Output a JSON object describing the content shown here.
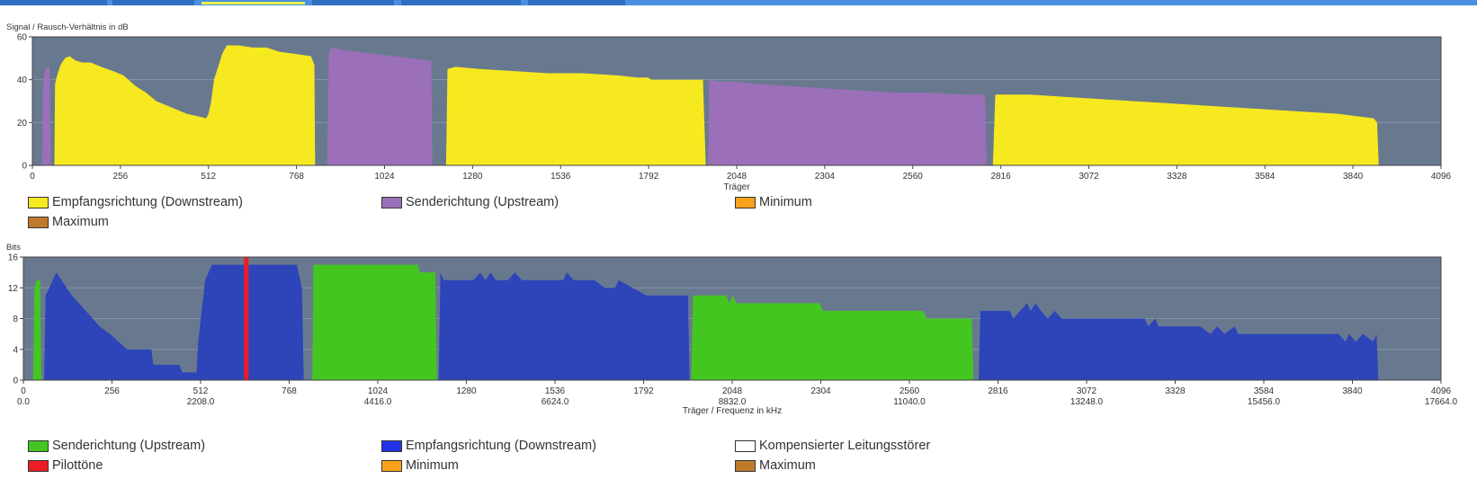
{
  "tabs": [
    {
      "label": "",
      "active": false
    },
    {
      "label": "",
      "active": false
    },
    {
      "label": "",
      "active": true
    },
    {
      "label": "",
      "active": false
    },
    {
      "label": "",
      "active": false
    },
    {
      "label": "",
      "active": false
    }
  ],
  "colors": {
    "plot_bg": "#68798f",
    "grid": "#8494a8",
    "downstream_snr": "#f7e91f",
    "upstream_snr": "#9b70b8",
    "upstream_bits": "#44c621",
    "downstream_bits": "#2d45b9",
    "pilot": "#ee1c24",
    "minimum": "#f8a11b",
    "maximum": "#c07a2c",
    "compensated": "#ffffff",
    "downstream_legend": "#2233e6"
  },
  "chart_data": [
    {
      "type": "area",
      "title": "Signal / Rausch-Verhältnis in dB",
      "xlabel": "Träger",
      "ylabel": "Signal / Rausch-Verhältnis in dB",
      "xlim": [
        0,
        4096
      ],
      "ylim": [
        0,
        60
      ],
      "xticks": [
        0,
        256,
        512,
        768,
        1024,
        1280,
        1536,
        1792,
        2048,
        2304,
        2560,
        2816,
        3072,
        3328,
        3584,
        3840,
        4096
      ],
      "yticks": [
        0,
        20,
        40,
        60
      ],
      "grid": true,
      "legend": [
        {
          "label": "Empfangsrichtung (Downstream)",
          "color": "#f7e91f"
        },
        {
          "label": "Senderichtung (Upstream)",
          "color": "#9b70b8"
        },
        {
          "label": "Minimum",
          "color": "#f8a11b"
        },
        {
          "label": "Maximum",
          "color": "#c07a2c"
        }
      ],
      "series": [
        {
          "name": "Senderichtung (Upstream)",
          "color": "#9b70b8",
          "points": [
            [
              28,
              0
            ],
            [
              32,
              40
            ],
            [
              38,
              45
            ],
            [
              44,
              46
            ],
            [
              50,
              46
            ],
            [
              54,
              0
            ]
          ]
        },
        {
          "name": "Empfangsrichtung (Downstream)",
          "color": "#f7e91f",
          "points": [
            [
              64,
              0
            ],
            [
              66,
              38
            ],
            [
              72,
              42
            ],
            [
              82,
              47
            ],
            [
              95,
              50
            ],
            [
              108,
              51
            ],
            [
              125,
              49
            ],
            [
              145,
              48
            ],
            [
              170,
              48
            ],
            [
              200,
              46
            ],
            [
              235,
              44
            ],
            [
              265,
              42
            ],
            [
              300,
              37
            ],
            [
              330,
              34
            ],
            [
              360,
              30
            ],
            [
              390,
              28
            ],
            [
              420,
              26
            ],
            [
              450,
              24
            ],
            [
              480,
              23
            ],
            [
              505,
              22
            ],
            [
              512,
              24
            ],
            [
              520,
              30
            ],
            [
              528,
              40
            ],
            [
              540,
              46
            ],
            [
              552,
              52
            ],
            [
              565,
              56
            ],
            [
              600,
              56
            ],
            [
              640,
              55
            ],
            [
              680,
              55
            ],
            [
              720,
              53
            ],
            [
              768,
              52
            ],
            [
              810,
              51
            ],
            [
              820,
              47
            ],
            [
              822,
              0
            ]
          ]
        },
        {
          "name": "Senderichtung (Upstream)",
          "color": "#9b70b8",
          "points": [
            [
              857,
              0
            ],
            [
              862,
              53
            ],
            [
              870,
              55
            ],
            [
              900,
              54
            ],
            [
              950,
              53
            ],
            [
              1000,
              52
            ],
            [
              1050,
              51
            ],
            [
              1100,
              50
            ],
            [
              1150,
              49
            ],
            [
              1160,
              49
            ],
            [
              1163,
              0
            ]
          ]
        },
        {
          "name": "Empfangsrichtung (Downstream)",
          "color": "#f7e91f",
          "points": [
            [
              1203,
              0
            ],
            [
              1207,
              45
            ],
            [
              1230,
              46
            ],
            [
              1300,
              45
            ],
            [
              1400,
              44
            ],
            [
              1500,
              43
            ],
            [
              1600,
              43
            ],
            [
              1700,
              42
            ],
            [
              1760,
              41
            ],
            [
              1790,
              41
            ],
            [
              1800,
              40
            ],
            [
              1950,
              40
            ],
            [
              1958,
              0
            ]
          ]
        },
        {
          "name": "Senderichtung (Upstream)",
          "color": "#9b70b8",
          "points": [
            [
              1965,
              0
            ],
            [
              1968,
              40
            ],
            [
              2000,
              39
            ],
            [
              2050,
              39
            ],
            [
              2100,
              38
            ],
            [
              2200,
              37
            ],
            [
              2300,
              36
            ],
            [
              2400,
              35
            ],
            [
              2500,
              34
            ],
            [
              2600,
              34
            ],
            [
              2700,
              33
            ],
            [
              2770,
              33
            ],
            [
              2775,
              0
            ]
          ]
        },
        {
          "name": "Empfangsrichtung (Downstream)",
          "color": "#f7e91f",
          "points": [
            [
              2793,
              0
            ],
            [
              2800,
              33
            ],
            [
              2900,
              33
            ],
            [
              3000,
              32
            ],
            [
              3100,
              31
            ],
            [
              3200,
              30
            ],
            [
              3300,
              29
            ],
            [
              3400,
              28
            ],
            [
              3500,
              27
            ],
            [
              3600,
              26
            ],
            [
              3700,
              25
            ],
            [
              3800,
              24
            ],
            [
              3850,
              23
            ],
            [
              3900,
              22
            ],
            [
              3910,
              20
            ],
            [
              3915,
              0
            ]
          ]
        }
      ]
    },
    {
      "type": "area",
      "title": "Bits",
      "xlabel": "Träger / Frequenz in kHz",
      "ylabel": "Bits",
      "xlim": [
        0,
        4096
      ],
      "ylim": [
        0,
        16
      ],
      "xticks": [
        0,
        256,
        512,
        768,
        1024,
        1280,
        1536,
        1792,
        2048,
        2304,
        2560,
        2816,
        3072,
        3328,
        3584,
        3840,
        4096
      ],
      "freq_labels": [
        "0.0",
        "2208.0",
        "4416.0",
        "6624.0",
        "8832.0",
        "11040.0",
        "13248.0",
        "15456.0",
        "17664.0"
      ],
      "yticks": [
        0,
        4,
        8,
        12,
        16
      ],
      "grid": true,
      "legend": [
        {
          "label": "Senderichtung (Upstream)",
          "color": "#44c621"
        },
        {
          "label": "Empfangsrichtung (Downstream)",
          "color": "#2233e6"
        },
        {
          "label": "Kompensierter Leitungsstörer",
          "color": "#ffffff"
        },
        {
          "label": "Pilottöne",
          "color": "#ee1c24"
        },
        {
          "label": "Minimum",
          "color": "#f8a11b"
        },
        {
          "label": "Maximum",
          "color": "#c07a2c"
        }
      ],
      "series": [
        {
          "name": "Senderichtung (Upstream)",
          "color": "#44c621",
          "points": [
            [
              28,
              0
            ],
            [
              32,
              12
            ],
            [
              38,
              13
            ],
            [
              48,
              13
            ],
            [
              52,
              0
            ]
          ]
        },
        {
          "name": "Empfangsrichtung (Downstream)",
          "color": "#2d45b9",
          "points": [
            [
              60,
              0
            ],
            [
              64,
              11
            ],
            [
              75,
              12
            ],
            [
              85,
              13
            ],
            [
              95,
              14
            ],
            [
              110,
              13
            ],
            [
              125,
              12
            ],
            [
              140,
              11
            ],
            [
              160,
              10
            ],
            [
              180,
              9
            ],
            [
              200,
              8
            ],
            [
              220,
              7
            ],
            [
              250,
              6
            ],
            [
              275,
              5
            ],
            [
              300,
              4
            ],
            [
              370,
              4
            ],
            [
              375,
              2
            ],
            [
              450,
              2
            ],
            [
              460,
              1
            ],
            [
              500,
              1
            ],
            [
              505,
              5
            ],
            [
              515,
              9
            ],
            [
              525,
              13
            ],
            [
              545,
              15
            ],
            [
              600,
              15
            ],
            [
              650,
              15
            ],
            [
              700,
              15
            ],
            [
              760,
              15
            ],
            [
              790,
              15
            ],
            [
              805,
              12
            ],
            [
              810,
              0
            ]
          ]
        },
        {
          "name": "Senderichtung (Upstream)",
          "color": "#44c621",
          "points": [
            [
              835,
              0
            ],
            [
              838,
              15
            ],
            [
              1140,
              15
            ],
            [
              1145,
              14
            ],
            [
              1190,
              14
            ],
            [
              1195,
              0
            ]
          ]
        },
        {
          "name": "Empfangsrichtung (Downstream)",
          "color": "#2d45b9",
          "points": [
            [
              1200,
              0
            ],
            [
              1205,
              14
            ],
            [
              1215,
              13
            ],
            [
              1300,
              13
            ],
            [
              1320,
              14
            ],
            [
              1335,
              13
            ],
            [
              1350,
              14
            ],
            [
              1365,
              13
            ],
            [
              1400,
              13
            ],
            [
              1420,
              14
            ],
            [
              1440,
              13
            ],
            [
              1460,
              13
            ],
            [
              1480,
              13
            ],
            [
              1500,
              13
            ],
            [
              1520,
              13
            ],
            [
              1560,
              13
            ],
            [
              1570,
              14
            ],
            [
              1590,
              13
            ],
            [
              1650,
              13
            ],
            [
              1680,
              12
            ],
            [
              1710,
              12
            ],
            [
              1720,
              13
            ],
            [
              1760,
              12
            ],
            [
              1800,
              11
            ],
            [
              1920,
              11
            ],
            [
              1925,
              0
            ]
          ]
        },
        {
          "name": "Senderichtung (Upstream)",
          "color": "#44c621",
          "points": [
            [
              1930,
              0
            ],
            [
              1935,
              11
            ],
            [
              2030,
              11
            ],
            [
              2040,
              10
            ],
            [
              2050,
              11
            ],
            [
              2060,
              10
            ],
            [
              2300,
              10
            ],
            [
              2310,
              9
            ],
            [
              2600,
              9
            ],
            [
              2610,
              8
            ],
            [
              2740,
              8
            ],
            [
              2745,
              0
            ]
          ]
        },
        {
          "name": "Empfangsrichtung (Downstream)",
          "color": "#2d45b9",
          "points": [
            [
              2760,
              0
            ],
            [
              2765,
              9
            ],
            [
              2850,
              9
            ],
            [
              2860,
              8
            ],
            [
              2880,
              9
            ],
            [
              2900,
              10
            ],
            [
              2910,
              9
            ],
            [
              2925,
              10
            ],
            [
              2940,
              9
            ],
            [
              2960,
              8
            ],
            [
              2980,
              9
            ],
            [
              3000,
              8
            ],
            [
              3100,
              8
            ],
            [
              3240,
              8
            ],
            [
              3250,
              7
            ],
            [
              3270,
              8
            ],
            [
              3280,
              7
            ],
            [
              3400,
              7
            ],
            [
              3430,
              6
            ],
            [
              3450,
              7
            ],
            [
              3470,
              6
            ],
            [
              3500,
              7
            ],
            [
              3510,
              6
            ],
            [
              3800,
              6
            ],
            [
              3820,
              5
            ],
            [
              3830,
              6
            ],
            [
              3850,
              5
            ],
            [
              3870,
              6
            ],
            [
              3900,
              5
            ],
            [
              3910,
              6
            ],
            [
              3915,
              0
            ]
          ]
        },
        {
          "name": "Pilottöne",
          "color": "#ee1c24",
          "type": "pilot",
          "points": [
            [
              644,
              16
            ]
          ]
        }
      ]
    }
  ]
}
